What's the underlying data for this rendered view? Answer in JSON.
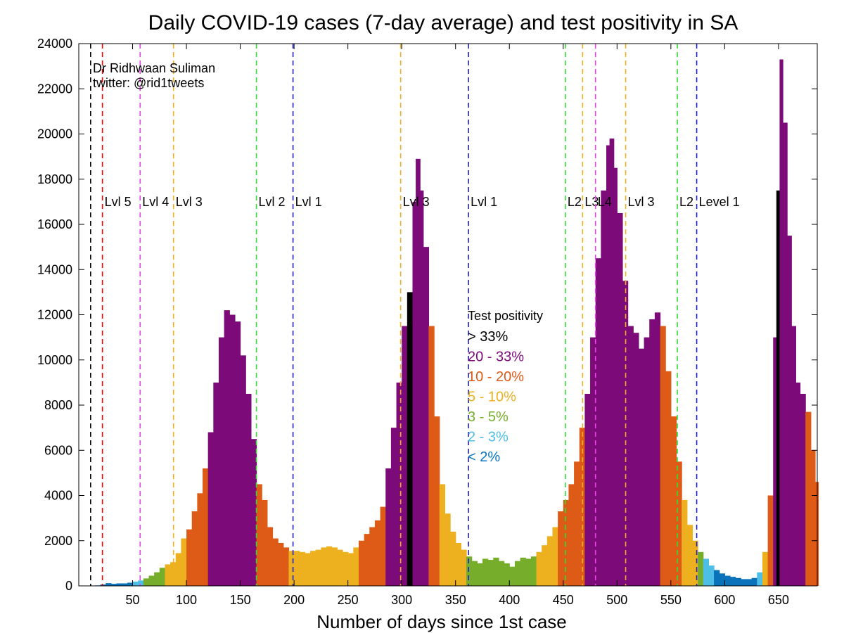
{
  "chart_data": {
    "type": "bar",
    "title": "Daily COVID-19 cases (7-day average) and test positivity in SA",
    "xlabel": "Number of days since 1st case",
    "ylabel": "",
    "xlim": [
      0,
      686
    ],
    "ylim": [
      0,
      24000
    ],
    "x_ticks": [
      50,
      100,
      150,
      200,
      250,
      300,
      350,
      400,
      450,
      500,
      550,
      600,
      650
    ],
    "y_ticks": [
      0,
      2000,
      4000,
      6000,
      8000,
      10000,
      12000,
      14000,
      16000,
      18000,
      20000,
      22000,
      24000
    ],
    "grid": false,
    "credit": [
      "Dr Ridhwaan Suliman",
      "twitter: @rid1tweets"
    ],
    "legend": {
      "title": "Test positivity",
      "placement": "center",
      "entries": [
        {
          "label": "> 33%",
          "color": "#000000"
        },
        {
          "label": "20 - 33%",
          "color": "#7d0a79"
        },
        {
          "label": "10 - 20%",
          "color": "#de5a17"
        },
        {
          "label": "5   - 10%",
          "color": "#edb01f"
        },
        {
          "label": "3   -  5%",
          "color": "#76ad2a"
        },
        {
          "label": "2   -  3%",
          "color": "#4dbfe6"
        },
        {
          "label": "< 2%",
          "color": "#0a72bb"
        }
      ]
    },
    "level_lines": [
      {
        "x": 11,
        "color": "#000000",
        "label": ""
      },
      {
        "x": 22,
        "color": "#ff0000",
        "label": "Lvl 5"
      },
      {
        "x": 57,
        "color": "#e642e6",
        "label": "Lvl 4"
      },
      {
        "x": 88,
        "color": "#edb01f",
        "label": "Lvl 3"
      },
      {
        "x": 165,
        "color": "#33dd33",
        "label": "Lvl 2"
      },
      {
        "x": 199,
        "color": "#1f1fcc",
        "label": "Lvl 1"
      },
      {
        "x": 299,
        "color": "#edb01f",
        "label": "Lvl 3"
      },
      {
        "x": 362,
        "color": "#1f1fcc",
        "label": "Lvl 1"
      },
      {
        "x": 452,
        "color": "#33dd33",
        "label": "L2"
      },
      {
        "x": 468,
        "color": "#edb01f",
        "label": "L3"
      },
      {
        "x": 480,
        "color": "#e642e6",
        "label": "L4"
      },
      {
        "x": 508,
        "color": "#edb01f",
        "label": "Lvl 3"
      },
      {
        "x": 556,
        "color": "#33dd33",
        "label": "L2"
      },
      {
        "x": 574,
        "color": "#1f1fcc",
        "label": "Level 1"
      }
    ],
    "series": [
      {
        "values": [
          {
            "day": 15,
            "cases": 20,
            "positivity": "< 2%"
          },
          {
            "day": 20,
            "cases": 60,
            "positivity": "< 2%"
          },
          {
            "day": 25,
            "cases": 120,
            "positivity": "< 2%"
          },
          {
            "day": 30,
            "cases": 90,
            "positivity": "< 2%"
          },
          {
            "day": 35,
            "cases": 110,
            "positivity": "< 2%"
          },
          {
            "day": 40,
            "cases": 110,
            "positivity": "< 2%"
          },
          {
            "day": 45,
            "cases": 140,
            "positivity": "< 2%"
          },
          {
            "day": 50,
            "cases": 190,
            "positivity": "2 - 3%"
          },
          {
            "day": 55,
            "cases": 240,
            "positivity": "2 - 3%"
          },
          {
            "day": 60,
            "cases": 330,
            "positivity": "3 - 5%"
          },
          {
            "day": 65,
            "cases": 450,
            "positivity": "3 - 5%"
          },
          {
            "day": 70,
            "cases": 600,
            "positivity": "3 - 5%"
          },
          {
            "day": 75,
            "cases": 800,
            "positivity": "3 - 5%"
          },
          {
            "day": 80,
            "cases": 950,
            "positivity": "5 - 10%"
          },
          {
            "day": 85,
            "cases": 1050,
            "positivity": "5 - 10%"
          },
          {
            "day": 90,
            "cases": 1450,
            "positivity": "5 - 10%"
          },
          {
            "day": 95,
            "cases": 2100,
            "positivity": "5 - 10%"
          },
          {
            "day": 100,
            "cases": 2500,
            "positivity": "10 - 20%"
          },
          {
            "day": 105,
            "cases": 3300,
            "positivity": "10 - 20%"
          },
          {
            "day": 110,
            "cases": 4100,
            "positivity": "10 - 20%"
          },
          {
            "day": 115,
            "cases": 5200,
            "positivity": "10 - 20%"
          },
          {
            "day": 120,
            "cases": 6800,
            "positivity": "20 - 33%"
          },
          {
            "day": 125,
            "cases": 9000,
            "positivity": "20 - 33%"
          },
          {
            "day": 130,
            "cases": 11000,
            "positivity": "20 - 33%"
          },
          {
            "day": 135,
            "cases": 12200,
            "positivity": "20 - 33%"
          },
          {
            "day": 140,
            "cases": 12000,
            "positivity": "20 - 33%"
          },
          {
            "day": 145,
            "cases": 11700,
            "positivity": "20 - 33%"
          },
          {
            "day": 150,
            "cases": 10200,
            "positivity": "20 - 33%"
          },
          {
            "day": 155,
            "cases": 8500,
            "positivity": "20 - 33%"
          },
          {
            "day": 160,
            "cases": 6500,
            "positivity": "20 - 33%"
          },
          {
            "day": 165,
            "cases": 4500,
            "positivity": "10 - 20%"
          },
          {
            "day": 170,
            "cases": 3800,
            "positivity": "10 - 20%"
          },
          {
            "day": 175,
            "cases": 2600,
            "positivity": "10 - 20%"
          },
          {
            "day": 180,
            "cases": 2100,
            "positivity": "10 - 20%"
          },
          {
            "day": 185,
            "cases": 1900,
            "positivity": "10 - 20%"
          },
          {
            "day": 190,
            "cases": 1700,
            "positivity": "10 - 20%"
          },
          {
            "day": 195,
            "cases": 1550,
            "positivity": "5 - 10%"
          },
          {
            "day": 200,
            "cases": 1550,
            "positivity": "5 - 10%"
          },
          {
            "day": 205,
            "cases": 1500,
            "positivity": "5 - 10%"
          },
          {
            "day": 210,
            "cases": 1450,
            "positivity": "5 - 10%"
          },
          {
            "day": 215,
            "cases": 1550,
            "positivity": "5 - 10%"
          },
          {
            "day": 220,
            "cases": 1600,
            "positivity": "5 - 10%"
          },
          {
            "day": 225,
            "cases": 1700,
            "positivity": "5 - 10%"
          },
          {
            "day": 230,
            "cases": 1750,
            "positivity": "5 - 10%"
          },
          {
            "day": 235,
            "cases": 1700,
            "positivity": "5 - 10%"
          },
          {
            "day": 240,
            "cases": 1600,
            "positivity": "5 - 10%"
          },
          {
            "day": 245,
            "cases": 1500,
            "positivity": "5 - 10%"
          },
          {
            "day": 250,
            "cases": 1450,
            "positivity": "5 - 10%"
          },
          {
            "day": 255,
            "cases": 1700,
            "positivity": "5 - 10%"
          },
          {
            "day": 260,
            "cases": 2000,
            "positivity": "10 - 20%"
          },
          {
            "day": 265,
            "cases": 2300,
            "positivity": "10 - 20%"
          },
          {
            "day": 270,
            "cases": 2600,
            "positivity": "10 - 20%"
          },
          {
            "day": 275,
            "cases": 2900,
            "positivity": "10 - 20%"
          },
          {
            "day": 280,
            "cases": 3500,
            "positivity": "10 - 20%"
          },
          {
            "day": 285,
            "cases": 5200,
            "positivity": "20 - 33%"
          },
          {
            "day": 290,
            "cases": 7000,
            "positivity": "20 - 33%"
          },
          {
            "day": 295,
            "cases": 9000,
            "positivity": "20 - 33%"
          },
          {
            "day": 300,
            "cases": 11500,
            "positivity": "20 - 33%"
          },
          {
            "day": 305,
            "cases": 13000,
            "positivity": "> 33%"
          },
          {
            "day": 310,
            "cases": 17000,
            "positivity": "20 - 33%"
          },
          {
            "day": 313,
            "cases": 18900,
            "positivity": "20 - 33%"
          },
          {
            "day": 317,
            "cases": 17500,
            "positivity": "20 - 33%"
          },
          {
            "day": 320,
            "cases": 15000,
            "positivity": "20 - 33%"
          },
          {
            "day": 325,
            "cases": 11500,
            "positivity": "10 - 20%"
          },
          {
            "day": 330,
            "cases": 7500,
            "positivity": "10 - 20%"
          },
          {
            "day": 335,
            "cases": 4500,
            "positivity": "5 - 10%"
          },
          {
            "day": 340,
            "cases": 3200,
            "positivity": "5 - 10%"
          },
          {
            "day": 345,
            "cases": 2400,
            "positivity": "5 - 10%"
          },
          {
            "day": 350,
            "cases": 1900,
            "positivity": "5 - 10%"
          },
          {
            "day": 355,
            "cases": 1600,
            "positivity": "5 - 10%"
          },
          {
            "day": 360,
            "cases": 1300,
            "positivity": "3 - 5%"
          },
          {
            "day": 365,
            "cases": 1100,
            "positivity": "3 - 5%"
          },
          {
            "day": 370,
            "cases": 1000,
            "positivity": "3 - 5%"
          },
          {
            "day": 375,
            "cases": 1200,
            "positivity": "3 - 5%"
          },
          {
            "day": 380,
            "cases": 1150,
            "positivity": "3 - 5%"
          },
          {
            "day": 385,
            "cases": 1250,
            "positivity": "3 - 5%"
          },
          {
            "day": 390,
            "cases": 1100,
            "positivity": "3 - 5%"
          },
          {
            "day": 395,
            "cases": 1000,
            "positivity": "3 - 5%"
          },
          {
            "day": 400,
            "cases": 850,
            "positivity": "3 - 5%"
          },
          {
            "day": 405,
            "cases": 1100,
            "positivity": "3 - 5%"
          },
          {
            "day": 410,
            "cases": 1250,
            "positivity": "3 - 5%"
          },
          {
            "day": 415,
            "cases": 1200,
            "positivity": "3 - 5%"
          },
          {
            "day": 420,
            "cases": 1300,
            "positivity": "3 - 5%"
          },
          {
            "day": 425,
            "cases": 1500,
            "positivity": "5 - 10%"
          },
          {
            "day": 430,
            "cases": 1800,
            "positivity": "5 - 10%"
          },
          {
            "day": 435,
            "cases": 2200,
            "positivity": "5 - 10%"
          },
          {
            "day": 440,
            "cases": 2600,
            "positivity": "5 - 10%"
          },
          {
            "day": 445,
            "cases": 3300,
            "positivity": "10 - 20%"
          },
          {
            "day": 450,
            "cases": 3800,
            "positivity": "10 - 20%"
          },
          {
            "day": 455,
            "cases": 4500,
            "positivity": "10 - 20%"
          },
          {
            "day": 460,
            "cases": 5500,
            "positivity": "10 - 20%"
          },
          {
            "day": 465,
            "cases": 7000,
            "positivity": "10 - 20%"
          },
          {
            "day": 470,
            "cases": 8500,
            "positivity": "20 - 33%"
          },
          {
            "day": 475,
            "cases": 11000,
            "positivity": "20 - 33%"
          },
          {
            "day": 480,
            "cases": 14500,
            "positivity": "20 - 33%"
          },
          {
            "day": 485,
            "cases": 17500,
            "positivity": "20 - 33%"
          },
          {
            "day": 490,
            "cases": 19500,
            "positivity": "20 - 33%"
          },
          {
            "day": 493,
            "cases": 19800,
            "positivity": "20 - 33%"
          },
          {
            "day": 497,
            "cases": 18500,
            "positivity": "20 - 33%"
          },
          {
            "day": 500,
            "cases": 16500,
            "positivity": "20 - 33%"
          },
          {
            "day": 505,
            "cases": 13500,
            "positivity": "20 - 33%"
          },
          {
            "day": 510,
            "cases": 11500,
            "positivity": "20 - 33%"
          },
          {
            "day": 515,
            "cases": 11200,
            "positivity": "20 - 33%"
          },
          {
            "day": 520,
            "cases": 10500,
            "positivity": "20 - 33%"
          },
          {
            "day": 525,
            "cases": 11000,
            "positivity": "20 - 33%"
          },
          {
            "day": 530,
            "cases": 11800,
            "positivity": "20 - 33%"
          },
          {
            "day": 535,
            "cases": 12100,
            "positivity": "20 - 33%"
          },
          {
            "day": 540,
            "cases": 11500,
            "positivity": "10 - 20%"
          },
          {
            "day": 545,
            "cases": 9500,
            "positivity": "10 - 20%"
          },
          {
            "day": 550,
            "cases": 7500,
            "positivity": "10 - 20%"
          },
          {
            "day": 555,
            "cases": 5500,
            "positivity": "10 - 20%"
          },
          {
            "day": 560,
            "cases": 3800,
            "positivity": "5 - 10%"
          },
          {
            "day": 565,
            "cases": 2700,
            "positivity": "5 - 10%"
          },
          {
            "day": 570,
            "cases": 2000,
            "positivity": "5 - 10%"
          },
          {
            "day": 575,
            "cases": 1500,
            "positivity": "3 - 5%"
          },
          {
            "day": 580,
            "cases": 1200,
            "positivity": "2 - 3%"
          },
          {
            "day": 585,
            "cases": 900,
            "positivity": "2 - 3%"
          },
          {
            "day": 590,
            "cases": 700,
            "positivity": "< 2%"
          },
          {
            "day": 595,
            "cases": 550,
            "positivity": "< 2%"
          },
          {
            "day": 600,
            "cases": 450,
            "positivity": "< 2%"
          },
          {
            "day": 605,
            "cases": 400,
            "positivity": "< 2%"
          },
          {
            "day": 610,
            "cases": 350,
            "positivity": "< 2%"
          },
          {
            "day": 615,
            "cases": 300,
            "positivity": "< 2%"
          },
          {
            "day": 620,
            "cases": 300,
            "positivity": "< 2%"
          },
          {
            "day": 625,
            "cases": 350,
            "positivity": "< 2%"
          },
          {
            "day": 630,
            "cases": 600,
            "positivity": "2 - 3%"
          },
          {
            "day": 635,
            "cases": 1500,
            "positivity": "5 - 10%"
          },
          {
            "day": 640,
            "cases": 4000,
            "positivity": "10 - 20%"
          },
          {
            "day": 645,
            "cases": 11000,
            "positivity": "20 - 33%"
          },
          {
            "day": 648,
            "cases": 17500,
            "positivity": "> 33%"
          },
          {
            "day": 651,
            "cases": 23300,
            "positivity": "20 - 33%"
          },
          {
            "day": 654,
            "cases": 20500,
            "positivity": "20 - 33%"
          },
          {
            "day": 658,
            "cases": 15500,
            "positivity": "20 - 33%"
          },
          {
            "day": 662,
            "cases": 11500,
            "positivity": "20 - 33%"
          },
          {
            "day": 666,
            "cases": 9000,
            "positivity": "20 - 33%"
          },
          {
            "day": 670,
            "cases": 8500,
            "positivity": "20 - 33%"
          },
          {
            "day": 675,
            "cases": 7700,
            "positivity": "10 - 20%"
          },
          {
            "day": 680,
            "cases": 6000,
            "positivity": "10 - 20%"
          },
          {
            "day": 684,
            "cases": 4600,
            "positivity": "10 - 20%"
          }
        ]
      }
    ]
  }
}
